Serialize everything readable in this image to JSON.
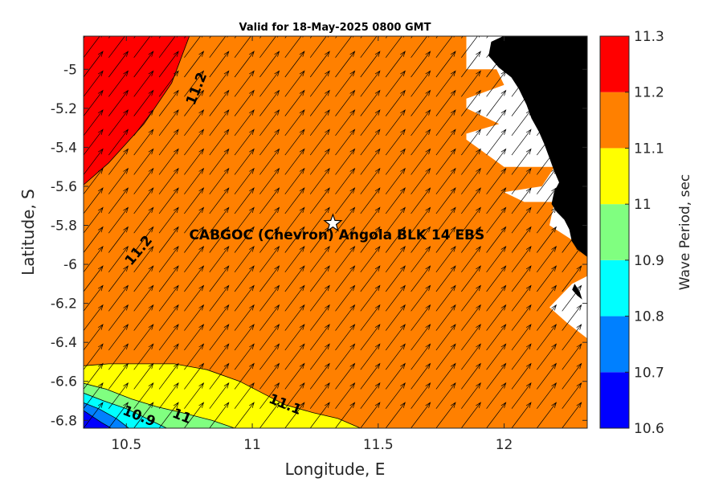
{
  "chart_data": {
    "type": "contour",
    "title": "Valid for 18-May-2025 0800 GMT",
    "xlabel": "Longitude, E",
    "ylabel": "Latitude, S",
    "xlim": [
      10.33,
      12.33
    ],
    "ylim": [
      -6.84,
      -4.83
    ],
    "xticks": [
      10.5,
      11,
      11.5,
      12
    ],
    "xtick_labels": [
      "10.5",
      "11",
      "11.5",
      "12"
    ],
    "yticks": [
      -5,
      -5.2,
      -5.4,
      -5.6,
      -5.8,
      -6,
      -6.2,
      -6.4,
      -6.6,
      -6.8
    ],
    "ytick_labels": [
      "-5",
      "-5.2",
      "-5.4",
      "-5.6",
      "-5.8",
      "-6",
      "-6.2",
      "-6.4",
      "-6.6",
      "-6.8"
    ],
    "colorbar": {
      "label": "Wave Period, sec",
      "levels": [
        10.6,
        10.7,
        10.8,
        10.9,
        11,
        11.1,
        11.2,
        11.3
      ],
      "level_labels": [
        "10.6",
        "10.7",
        "10.8",
        "10.9",
        "11",
        "11.1",
        "11.2",
        "11.3"
      ],
      "colors": [
        "#0000ff",
        "#0080ff",
        "#00ffff",
        "#80ff80",
        "#ffff00",
        "#ff8000",
        "#ff0000"
      ]
    },
    "regions": [
      {
        "range": [
          11.2,
          11.3
        ],
        "color": "#ff0000",
        "boundary": [
          [
            10.33,
            -4.83
          ],
          [
            10.75,
            -4.83
          ],
          [
            10.68,
            -5.07
          ],
          [
            10.57,
            -5.28
          ],
          [
            10.43,
            -5.48
          ],
          [
            10.27,
            -5.66
          ],
          [
            10.07,
            -5.87
          ],
          [
            9.83,
            -6.06
          ],
          [
            9.6,
            -6.24
          ],
          [
            9.4,
            -6.38
          ],
          [
            10.33,
            -6.38
          ]
        ]
      },
      {
        "range": [
          11.0,
          11.1
        ],
        "color": "#ffff00",
        "boundary": [
          [
            10.33,
            -6.52
          ],
          [
            10.43,
            -6.51
          ],
          [
            10.69,
            -6.51
          ],
          [
            10.82,
            -6.54
          ],
          [
            10.95,
            -6.6
          ],
          [
            11.04,
            -6.66
          ],
          [
            11.13,
            -6.72
          ],
          [
            11.24,
            -6.76
          ],
          [
            11.34,
            -6.79
          ],
          [
            11.43,
            -6.84
          ],
          [
            10.33,
            -6.84
          ]
        ]
      },
      {
        "range": [
          10.9,
          11.0
        ],
        "color": "#80ff80",
        "boundary": [
          [
            10.33,
            -6.61
          ],
          [
            10.42,
            -6.64
          ],
          [
            10.52,
            -6.69
          ],
          [
            10.62,
            -6.73
          ],
          [
            10.72,
            -6.76
          ],
          [
            10.84,
            -6.8
          ],
          [
            10.93,
            -6.84
          ],
          [
            10.33,
            -6.84
          ]
        ]
      },
      {
        "range": [
          10.8,
          10.9
        ],
        "color": "#00ffff",
        "boundary": [
          [
            10.33,
            -6.66
          ],
          [
            10.41,
            -6.7
          ],
          [
            10.5,
            -6.74
          ],
          [
            10.58,
            -6.79
          ],
          [
            10.66,
            -6.84
          ],
          [
            10.33,
            -6.84
          ]
        ]
      },
      {
        "range": [
          10.7,
          10.8
        ],
        "color": "#0080ff",
        "boundary": [
          [
            10.33,
            -6.71
          ],
          [
            10.39,
            -6.74
          ],
          [
            10.46,
            -6.79
          ],
          [
            10.51,
            -6.84
          ],
          [
            10.33,
            -6.84
          ]
        ]
      },
      {
        "range": [
          10.6,
          10.7
        ],
        "color": "#0000ff",
        "boundary": [
          [
            10.33,
            -6.75
          ],
          [
            10.4,
            -6.81
          ],
          [
            10.44,
            -6.84
          ],
          [
            10.33,
            -6.84
          ]
        ]
      }
    ],
    "land": {
      "color": "#000000",
      "coast": [
        [
          12.0,
          -4.83
        ],
        [
          11.95,
          -4.86
        ],
        [
          11.94,
          -4.93
        ],
        [
          11.98,
          -4.99
        ],
        [
          12.03,
          -5.04
        ],
        [
          12.06,
          -5.1
        ],
        [
          12.09,
          -5.18
        ],
        [
          12.11,
          -5.25
        ],
        [
          12.14,
          -5.32
        ],
        [
          12.16,
          -5.38
        ],
        [
          12.18,
          -5.45
        ],
        [
          12.2,
          -5.52
        ],
        [
          12.22,
          -5.58
        ],
        [
          12.2,
          -5.63
        ],
        [
          12.19,
          -5.69
        ],
        [
          12.21,
          -5.73
        ],
        [
          12.24,
          -5.77
        ],
        [
          12.26,
          -5.82
        ],
        [
          12.27,
          -5.88
        ],
        [
          12.29,
          -5.92
        ],
        [
          12.33,
          -5.96
        ],
        [
          12.33,
          -4.83
        ]
      ]
    },
    "masked_white": {
      "color": "#ffffff",
      "boundary": [
        [
          11.85,
          -4.83
        ],
        [
          11.85,
          -5.0
        ],
        [
          11.97,
          -5.0
        ],
        [
          12.0,
          -5.08
        ],
        [
          11.85,
          -5.15
        ],
        [
          11.85,
          -5.2
        ],
        [
          11.98,
          -5.28
        ],
        [
          11.85,
          -5.33
        ],
        [
          11.85,
          -5.36
        ],
        [
          12.0,
          -5.5
        ],
        [
          12.2,
          -5.5
        ],
        [
          12.15,
          -5.6
        ],
        [
          12.0,
          -5.63
        ],
        [
          12.08,
          -5.68
        ],
        [
          12.2,
          -5.68
        ],
        [
          12.18,
          -5.8
        ],
        [
          12.3,
          -5.9
        ],
        [
          12.33,
          -5.96
        ],
        [
          12.33,
          -6.38
        ],
        [
          12.25,
          -6.3
        ],
        [
          12.18,
          -6.22
        ],
        [
          12.27,
          -6.1
        ],
        [
          12.33,
          -6.06
        ],
        [
          12.33,
          -5.96
        ],
        [
          12.29,
          -5.92
        ],
        [
          12.27,
          -5.88
        ],
        [
          12.26,
          -5.82
        ],
        [
          12.24,
          -5.77
        ],
        [
          12.21,
          -5.73
        ],
        [
          12.19,
          -5.69
        ],
        [
          12.2,
          -5.63
        ],
        [
          12.22,
          -5.58
        ],
        [
          12.2,
          -5.52
        ],
        [
          12.18,
          -5.45
        ],
        [
          12.16,
          -5.38
        ],
        [
          12.14,
          -5.32
        ],
        [
          12.11,
          -5.25
        ],
        [
          12.09,
          -5.18
        ],
        [
          12.06,
          -5.1
        ],
        [
          12.03,
          -5.04
        ],
        [
          11.98,
          -4.99
        ],
        [
          11.94,
          -4.93
        ],
        [
          11.95,
          -4.86
        ],
        [
          12.0,
          -4.83
        ]
      ]
    },
    "island": [
      [
        12.28,
        -6.1
      ],
      [
        12.3,
        -6.14
      ],
      [
        12.31,
        -6.18
      ],
      [
        12.29,
        -6.16
      ],
      [
        12.27,
        -6.13
      ]
    ],
    "contour_labels": [
      {
        "text": "11.2",
        "x": 10.78,
        "y": -5.1,
        "angle": -68
      },
      {
        "text": "11.2",
        "x": 10.55,
        "y": -5.93,
        "angle": -50
      },
      {
        "text": "11.1",
        "x": 11.13,
        "y": -6.72,
        "angle": 22
      },
      {
        "text": "11",
        "x": 10.72,
        "y": -6.78,
        "angle": 22
      },
      {
        "text": "10.9",
        "x": 10.55,
        "y": -6.78,
        "angle": 22
      }
    ],
    "station": {
      "name": "CABGOC (Chevron)  Angola BLK 14  EBS",
      "lon": 11.32,
      "lat": -5.79
    },
    "vectors": {
      "direction_deg": 37,
      "lon_start": 10.33,
      "lon_step": 0.1,
      "lon_count": 20,
      "lat_start": -6.84,
      "lat_step": 0.1,
      "lat_count": 21
    }
  }
}
